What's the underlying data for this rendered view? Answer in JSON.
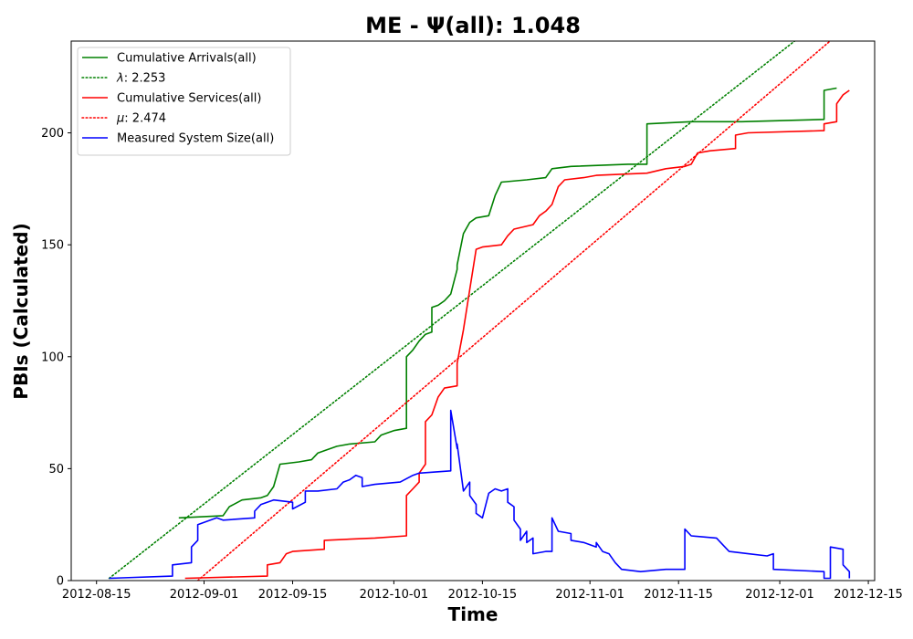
{
  "chart_data": {
    "type": "line",
    "title": "ME -  Ψ(all): 1.048",
    "xlabel": "Time",
    "ylabel": "PBIs (Calculated)",
    "xlim": [
      "2012-08-11",
      "2012-12-16"
    ],
    "ylim": [
      0,
      241
    ],
    "x_ticks": [
      "2012-08-15",
      "2012-09-01",
      "2012-09-15",
      "2012-10-01",
      "2012-10-15",
      "2012-11-01",
      "2012-11-15",
      "2012-12-01",
      "2012-12-15"
    ],
    "y_ticks": [
      0,
      50,
      100,
      150,
      200
    ],
    "legend": {
      "position": "top-left"
    },
    "series": [
      {
        "name": "Cumulative Arrivals(all)",
        "style": "solid",
        "color": "#008000",
        "points": [
          [
            "2012-08-28",
            28
          ],
          [
            "2012-09-04",
            29
          ],
          [
            "2012-09-05",
            33
          ],
          [
            "2012-09-07",
            36
          ],
          [
            "2012-09-10",
            37
          ],
          [
            "2012-09-11",
            38
          ],
          [
            "2012-09-12",
            42
          ],
          [
            "2012-09-13",
            52
          ],
          [
            "2012-09-16",
            53
          ],
          [
            "2012-09-18",
            54
          ],
          [
            "2012-09-19",
            57
          ],
          [
            "2012-09-20",
            58
          ],
          [
            "2012-09-22",
            60
          ],
          [
            "2012-09-24",
            61
          ],
          [
            "2012-09-28",
            62
          ],
          [
            "2012-09-29",
            65
          ],
          [
            "2012-09-30",
            66
          ],
          [
            "2012-10-01",
            67
          ],
          [
            "2012-10-03",
            68
          ],
          [
            "2012-10-03",
            100
          ],
          [
            "2012-10-04",
            103
          ],
          [
            "2012-10-05",
            107
          ],
          [
            "2012-10-06",
            110
          ],
          [
            "2012-10-07",
            111
          ],
          [
            "2012-10-07",
            122
          ],
          [
            "2012-10-08",
            123
          ],
          [
            "2012-10-09",
            125
          ],
          [
            "2012-10-10",
            128
          ],
          [
            "2012-10-11",
            139
          ],
          [
            "2012-10-11",
            141
          ],
          [
            "2012-10-12",
            155
          ],
          [
            "2012-10-13",
            160
          ],
          [
            "2012-10-14",
            162
          ],
          [
            "2012-10-16",
            163
          ],
          [
            "2012-10-17",
            172
          ],
          [
            "2012-10-18",
            178
          ],
          [
            "2012-10-22",
            179
          ],
          [
            "2012-10-25",
            180
          ],
          [
            "2012-10-26",
            184
          ],
          [
            "2012-10-29",
            185
          ],
          [
            "2012-11-07",
            186
          ],
          [
            "2012-11-10",
            186
          ],
          [
            "2012-11-10",
            204
          ],
          [
            "2012-11-17",
            205
          ],
          [
            "2012-11-25",
            205
          ],
          [
            "2012-12-08",
            206
          ],
          [
            "2012-12-08",
            219
          ],
          [
            "2012-12-10",
            220
          ]
        ]
      },
      {
        "name": "λ: 2.253",
        "label_prefix": "λ",
        "label_value": ": 2.253",
        "style": "dotted",
        "color": "#008000",
        "points": [
          [
            "2012-08-17",
            1
          ],
          [
            "2012-12-16",
            269
          ]
        ]
      },
      {
        "name": "Cumulative Services(all)",
        "style": "solid",
        "color": "#ff0000",
        "points": [
          [
            "2012-08-29",
            1
          ],
          [
            "2012-09-11",
            2
          ],
          [
            "2012-09-11",
            7
          ],
          [
            "2012-09-13",
            8
          ],
          [
            "2012-09-14",
            12
          ],
          [
            "2012-09-15",
            13
          ],
          [
            "2012-09-20",
            14
          ],
          [
            "2012-09-20",
            18
          ],
          [
            "2012-09-28",
            19
          ],
          [
            "2012-10-03",
            20
          ],
          [
            "2012-10-03",
            38
          ],
          [
            "2012-10-04",
            41
          ],
          [
            "2012-10-05",
            44
          ],
          [
            "2012-10-05",
            48
          ],
          [
            "2012-10-06",
            52
          ],
          [
            "2012-10-06",
            71
          ],
          [
            "2012-10-07",
            74
          ],
          [
            "2012-10-08",
            82
          ],
          [
            "2012-10-09",
            86
          ],
          [
            "2012-10-11",
            87
          ],
          [
            "2012-10-11",
            97
          ],
          [
            "2012-10-12",
            112
          ],
          [
            "2012-10-13",
            130
          ],
          [
            "2012-10-14",
            148
          ],
          [
            "2012-10-15",
            149
          ],
          [
            "2012-10-18",
            150
          ],
          [
            "2012-10-19",
            154
          ],
          [
            "2012-10-20",
            157
          ],
          [
            "2012-10-23",
            159
          ],
          [
            "2012-10-24",
            163
          ],
          [
            "2012-10-25",
            165
          ],
          [
            "2012-10-26",
            168
          ],
          [
            "2012-10-27",
            176
          ],
          [
            "2012-10-28",
            179
          ],
          [
            "2012-10-31",
            180
          ],
          [
            "2012-11-02",
            181
          ],
          [
            "2012-11-10",
            182
          ],
          [
            "2012-11-13",
            184
          ],
          [
            "2012-11-16",
            185
          ],
          [
            "2012-11-17",
            186
          ],
          [
            "2012-11-18",
            191
          ],
          [
            "2012-11-20",
            192
          ],
          [
            "2012-11-24",
            193
          ],
          [
            "2012-11-24",
            199
          ],
          [
            "2012-11-26",
            200
          ],
          [
            "2012-12-08",
            201
          ],
          [
            "2012-12-08",
            204
          ],
          [
            "2012-12-10",
            205
          ],
          [
            "2012-12-10",
            213
          ],
          [
            "2012-12-11",
            217
          ],
          [
            "2012-12-12",
            219
          ]
        ]
      },
      {
        "name": "μ: 2.474",
        "label_prefix": "μ",
        "label_value": ": 2.474",
        "style": "dotted",
        "color": "#ff0000",
        "points": [
          [
            "2012-08-31",
            0
          ],
          [
            "2012-12-16",
            258
          ]
        ]
      },
      {
        "name": "Measured System Size(all)",
        "style": "solid",
        "color": "#0000ff",
        "points": [
          [
            "2012-08-17",
            1
          ],
          [
            "2012-08-27",
            2
          ],
          [
            "2012-08-27",
            7
          ],
          [
            "2012-08-30",
            8
          ],
          [
            "2012-08-30",
            15
          ],
          [
            "2012-08-31",
            18
          ],
          [
            "2012-08-31",
            25
          ],
          [
            "2012-09-02",
            27
          ],
          [
            "2012-09-03",
            28
          ],
          [
            "2012-09-04",
            27
          ],
          [
            "2012-09-09",
            28
          ],
          [
            "2012-09-09",
            31
          ],
          [
            "2012-09-10",
            34
          ],
          [
            "2012-09-12",
            36
          ],
          [
            "2012-09-15",
            35
          ],
          [
            "2012-09-15",
            32
          ],
          [
            "2012-09-17",
            35
          ],
          [
            "2012-09-17",
            40
          ],
          [
            "2012-09-19",
            40
          ],
          [
            "2012-09-22",
            41
          ],
          [
            "2012-09-23",
            44
          ],
          [
            "2012-09-24",
            45
          ],
          [
            "2012-09-25",
            47
          ],
          [
            "2012-09-26",
            46
          ],
          [
            "2012-09-26",
            42
          ],
          [
            "2012-09-28",
            43
          ],
          [
            "2012-10-02",
            44
          ],
          [
            "2012-10-04",
            47
          ],
          [
            "2012-10-05",
            48
          ],
          [
            "2012-10-10",
            49
          ],
          [
            "2012-10-10",
            60
          ],
          [
            "2012-10-10",
            76
          ],
          [
            "2012-10-11",
            59
          ],
          [
            "2012-10-11",
            61
          ],
          [
            "2012-10-12",
            40
          ],
          [
            "2012-10-13",
            44
          ],
          [
            "2012-10-13",
            38
          ],
          [
            "2012-10-14",
            34
          ],
          [
            "2012-10-14",
            30
          ],
          [
            "2012-10-15",
            28
          ],
          [
            "2012-10-16",
            39
          ],
          [
            "2012-10-17",
            41
          ],
          [
            "2012-10-18",
            40
          ],
          [
            "2012-10-19",
            41
          ],
          [
            "2012-10-19",
            35
          ],
          [
            "2012-10-20",
            33
          ],
          [
            "2012-10-20",
            27
          ],
          [
            "2012-10-21",
            23
          ],
          [
            "2012-10-21",
            18
          ],
          [
            "2012-10-22",
            22
          ],
          [
            "2012-10-22",
            17
          ],
          [
            "2012-10-23",
            19
          ],
          [
            "2012-10-23",
            12
          ],
          [
            "2012-10-25",
            13
          ],
          [
            "2012-10-26",
            13
          ],
          [
            "2012-10-26",
            28
          ],
          [
            "2012-10-27",
            22
          ],
          [
            "2012-10-29",
            21
          ],
          [
            "2012-10-29",
            18
          ],
          [
            "2012-10-31",
            17
          ],
          [
            "2012-11-02",
            15
          ],
          [
            "2012-11-02",
            17
          ],
          [
            "2012-11-03",
            13
          ],
          [
            "2012-11-04",
            12
          ],
          [
            "2012-11-05",
            8
          ],
          [
            "2012-11-06",
            5
          ],
          [
            "2012-11-09",
            4
          ],
          [
            "2012-11-13",
            5
          ],
          [
            "2012-11-16",
            5
          ],
          [
            "2012-11-16",
            23
          ],
          [
            "2012-11-17",
            20
          ],
          [
            "2012-11-21",
            19
          ],
          [
            "2012-11-22",
            16
          ],
          [
            "2012-11-23",
            13
          ],
          [
            "2012-11-26",
            12
          ],
          [
            "2012-11-29",
            11
          ],
          [
            "2012-11-30",
            12
          ],
          [
            "2012-11-30",
            5
          ],
          [
            "2012-12-08",
            4
          ],
          [
            "2012-12-08",
            1
          ],
          [
            "2012-12-09",
            1
          ],
          [
            "2012-12-09",
            15
          ],
          [
            "2012-12-11",
            14
          ],
          [
            "2012-12-11",
            7
          ],
          [
            "2012-12-12",
            4
          ],
          [
            "2012-12-12",
            1
          ]
        ]
      }
    ]
  }
}
